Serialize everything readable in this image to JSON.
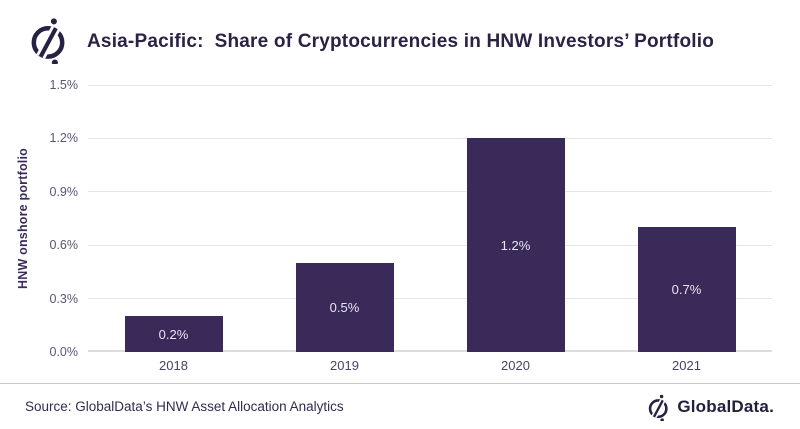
{
  "header": {
    "title": "Asia-Pacific:  Share of Cryptocurrencies in HNW Investors’ Portfolio"
  },
  "chart_data": {
    "type": "bar",
    "title": "Asia-Pacific: Share of Cryptocurrencies in HNW Investors’ Portfolio",
    "categories": [
      "2018",
      "2019",
      "2020",
      "2021"
    ],
    "values": [
      0.2,
      0.5,
      1.2,
      0.7
    ],
    "bar_labels": [
      "0.2%",
      "0.5%",
      "1.2%",
      "0.7%"
    ],
    "xlabel": "",
    "ylabel": "HNW onshore portfolio",
    "ylim": [
      0,
      1.5
    ],
    "yticks": [
      {
        "value": 0.0,
        "label": "0.0%"
      },
      {
        "value": 0.3,
        "label": "0.3%"
      },
      {
        "value": 0.6,
        "label": "0.6%"
      },
      {
        "value": 0.9,
        "label": "0.9%"
      },
      {
        "value": 1.2,
        "label": "1.2%"
      },
      {
        "value": 1.5,
        "label": "1.5%"
      }
    ],
    "grid": "horizontal",
    "legend": "none",
    "bar_color": "#3a2a5a",
    "bar_label_color": "#e9e5f0"
  },
  "footer": {
    "source": "Source: GlobalData’s HNW Asset Allocation Analytics",
    "brand": "GlobalData."
  },
  "colors": {
    "title_text": "#2b2244",
    "axis_text": "#5b5574",
    "x_tick_text": "#4a4168",
    "y_axis_title_text": "#3b2b5c",
    "bar_fill": "#3a2a5a",
    "gridline": "#e6e5ea",
    "divider": "#c9c8cf",
    "logo_ink": "#262243",
    "background": "#ffffff"
  }
}
